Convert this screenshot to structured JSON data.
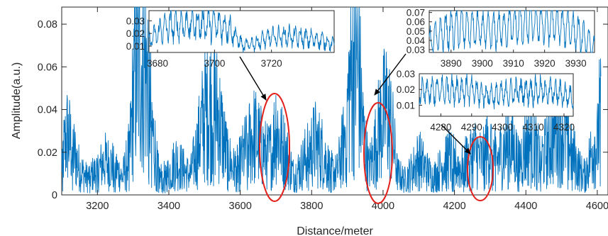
{
  "chart_data": [
    {
      "type": "line",
      "xlabel": "Distance/meter",
      "ylabel": "Amplitude(a.u.)",
      "xlim": [
        3100,
        4630
      ],
      "ylim": [
        0,
        0.088
      ],
      "xticks": [
        3200,
        3400,
        3600,
        3800,
        4000,
        4200,
        4400,
        4600
      ],
      "xtick_labels": [
        "3200",
        "3400",
        "3600",
        "3800",
        "4000",
        "4200",
        "4400",
        "4600"
      ],
      "yticks": [
        0,
        0.02,
        0.04,
        0.06,
        0.08
      ],
      "ytick_labels": [
        "0",
        "0.02",
        "0.04",
        "0.06",
        "0.08"
      ],
      "series_color": "#0072bd",
      "highlight_color": "#e3211c",
      "envelope": {
        "x": [
          3100,
          3115,
          3130,
          3150,
          3170,
          3200,
          3220,
          3250,
          3270,
          3290,
          3305,
          3320,
          3340,
          3355,
          3375,
          3400,
          3420,
          3440,
          3460,
          3480,
          3500,
          3520,
          3540,
          3560,
          3580,
          3600,
          3620,
          3640,
          3660,
          3675,
          3690,
          3700,
          3710,
          3720,
          3735,
          3750,
          3770,
          3790,
          3810,
          3830,
          3850,
          3870,
          3890,
          3905,
          3920,
          3930,
          3945,
          3960,
          3975,
          3990,
          4000,
          4010,
          4025,
          4040,
          4060,
          4080,
          4100,
          4120,
          4140,
          4160,
          4180,
          4200,
          4220,
          4240,
          4260,
          4275,
          4290,
          4305,
          4320,
          4335,
          4350,
          4365,
          4380,
          4395,
          4410,
          4425,
          4440,
          4460,
          4480,
          4500,
          4520,
          4540,
          4560,
          4575,
          4590,
          4600,
          4610
        ],
        "y": [
          0.016,
          0.028,
          0.022,
          0.012,
          0.008,
          0.011,
          0.016,
          0.013,
          0.008,
          0.02,
          0.056,
          0.062,
          0.058,
          0.028,
          0.008,
          0.01,
          0.016,
          0.012,
          0.009,
          0.022,
          0.038,
          0.044,
          0.036,
          0.02,
          0.012,
          0.015,
          0.023,
          0.028,
          0.022,
          0.018,
          0.02,
          0.034,
          0.025,
          0.022,
          0.016,
          0.009,
          0.013,
          0.02,
          0.024,
          0.02,
          0.012,
          0.01,
          0.024,
          0.05,
          0.062,
          0.06,
          0.028,
          0.012,
          0.02,
          0.032,
          0.036,
          0.04,
          0.03,
          0.01,
          0.007,
          0.011,
          0.017,
          0.012,
          0.008,
          0.012,
          0.018,
          0.015,
          0.012,
          0.018,
          0.02,
          0.016,
          0.022,
          0.021,
          0.016,
          0.02,
          0.026,
          0.022,
          0.015,
          0.021,
          0.026,
          0.023,
          0.016,
          0.021,
          0.03,
          0.032,
          0.025,
          0.015,
          0.009,
          0.014,
          0.024,
          0.022,
          0.045
        ]
      }
    },
    {
      "type": "line",
      "xlim": [
        3677,
        3742
      ],
      "ylim": [
        0.005,
        0.038
      ],
      "xticks": [
        3680,
        3700,
        3720
      ],
      "xtick_labels": [
        "3680",
        "3700",
        "3720"
      ],
      "yticks": [
        0.01,
        0.02,
        0.03
      ],
      "ytick_labels": [
        "0.01",
        "0.02",
        "0.03"
      ],
      "envelope": {
        "x": [
          3677,
          3682,
          3688,
          3695,
          3700,
          3705,
          3710,
          3715,
          3720,
          3726,
          3732,
          3737,
          3742
        ],
        "y": [
          0.014,
          0.024,
          0.027,
          0.028,
          0.027,
          0.025,
          0.01,
          0.013,
          0.017,
          0.018,
          0.016,
          0.015,
          0.011
        ]
      }
    },
    {
      "type": "line",
      "xlim": [
        3883,
        3936
      ],
      "ylim": [
        0.027,
        0.072
      ],
      "xticks": [
        3890,
        3900,
        3910,
        3920,
        3930
      ],
      "xtick_labels": [
        "3890",
        "3900",
        "3910",
        "3920",
        "3930"
      ],
      "yticks": [
        0.03,
        0.04,
        0.05,
        0.06,
        0.07
      ],
      "ytick_labels": [
        "0.03",
        "0.04",
        "0.05",
        "0.06",
        "0.07"
      ],
      "envelope": {
        "x": [
          3883,
          3888,
          3893,
          3898,
          3903,
          3908,
          3913,
          3918,
          3923,
          3928,
          3932,
          3936
        ],
        "y": [
          0.038,
          0.05,
          0.054,
          0.052,
          0.049,
          0.054,
          0.058,
          0.059,
          0.058,
          0.054,
          0.044,
          0.031
        ]
      }
    },
    {
      "type": "line",
      "xlim": [
        4273,
        4323
      ],
      "ylim": [
        0.003,
        0.03
      ],
      "xticks": [
        4280,
        4290,
        4300,
        4310,
        4320
      ],
      "xtick_labels": [
        "4280",
        "4290",
        "4300",
        "4310",
        "4320"
      ],
      "yticks": [
        0.01,
        0.02,
        0.03
      ],
      "ytick_labels": [
        "0.01",
        "0.02",
        "0.03"
      ],
      "envelope": {
        "x": [
          4273,
          4278,
          4283,
          4288,
          4293,
          4298,
          4303,
          4308,
          4313,
          4318,
          4323
        ],
        "y": [
          0.018,
          0.019,
          0.02,
          0.02,
          0.017,
          0.016,
          0.018,
          0.019,
          0.019,
          0.018,
          0.015
        ]
      }
    }
  ]
}
